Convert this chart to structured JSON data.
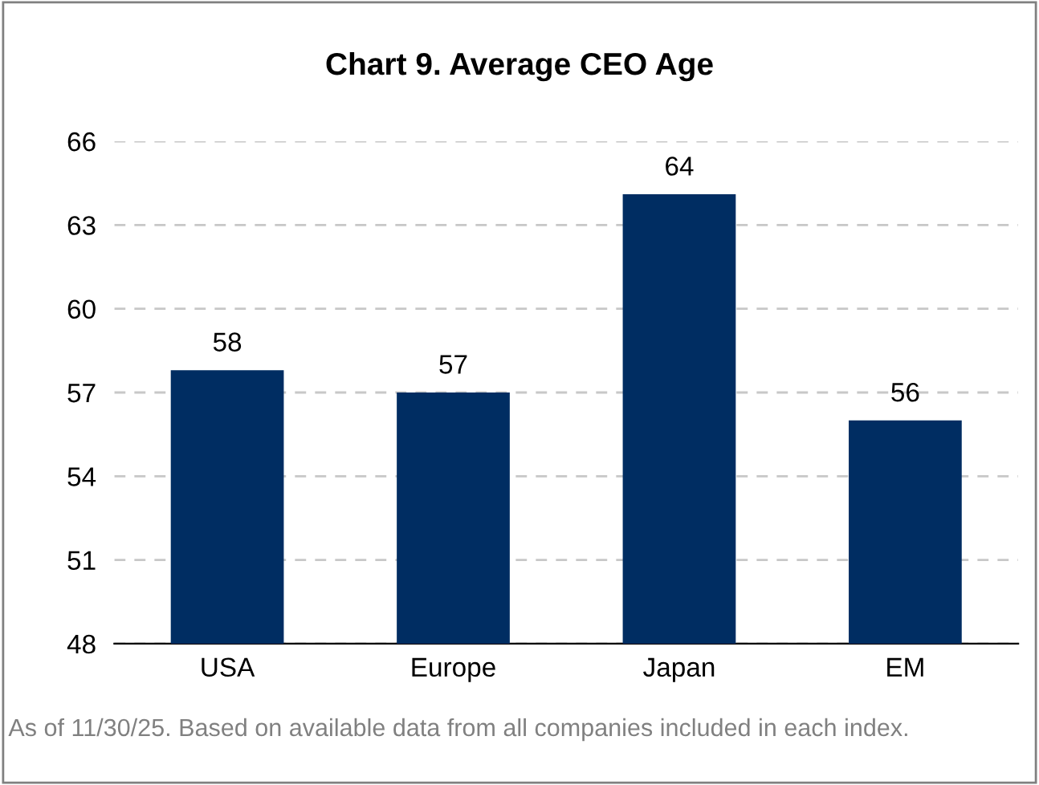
{
  "chart_data": {
    "type": "bar",
    "title": "Chart 9. Average CEO Age",
    "categories": [
      "USA",
      "Europe",
      "Japan",
      "EM"
    ],
    "values": [
      57.8,
      57.0,
      64.1,
      56.0
    ],
    "value_labels": [
      "58",
      "57",
      "64",
      "56"
    ],
    "color": "#002d62",
    "ylim": [
      48,
      66
    ],
    "yticks": [
      48,
      51,
      54,
      57,
      60,
      63,
      66
    ],
    "grid": "y",
    "annotations": [
      "As of 11/30/25. Based on available data from all companies included in each index."
    ]
  }
}
